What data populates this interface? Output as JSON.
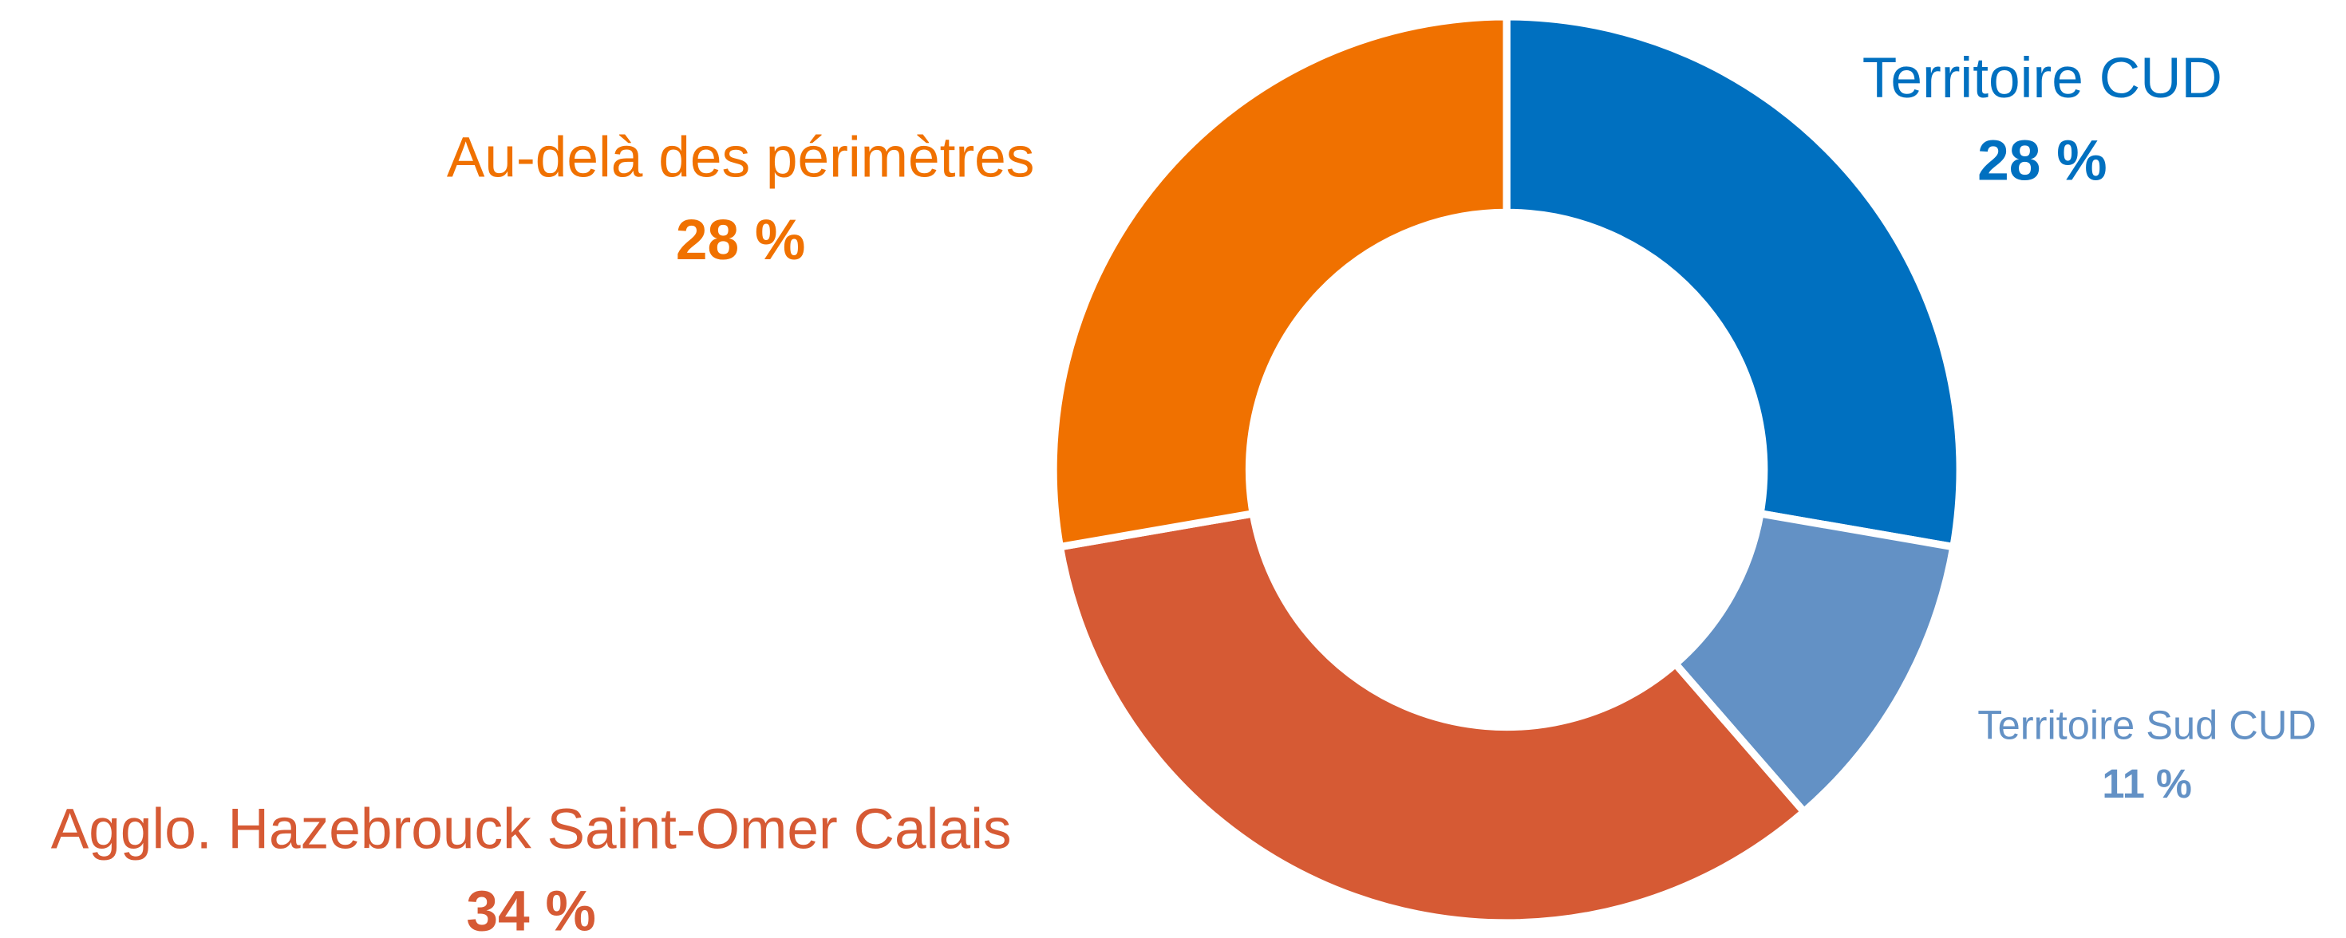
{
  "chart_data": {
    "type": "donut",
    "categories": [
      "Territoire CUD",
      "Territoire Sud CUD",
      "Agglo. Hazebrouck Saint-Omer Calais",
      "Au-delà des périmètres"
    ],
    "values": [
      28,
      11,
      34,
      28
    ],
    "value_labels": [
      "28 %",
      "11 %",
      "34 %",
      "28 %"
    ],
    "colors": [
      "#0070c0",
      "#6391c5",
      "#d65a34",
      "#f07100"
    ]
  }
}
